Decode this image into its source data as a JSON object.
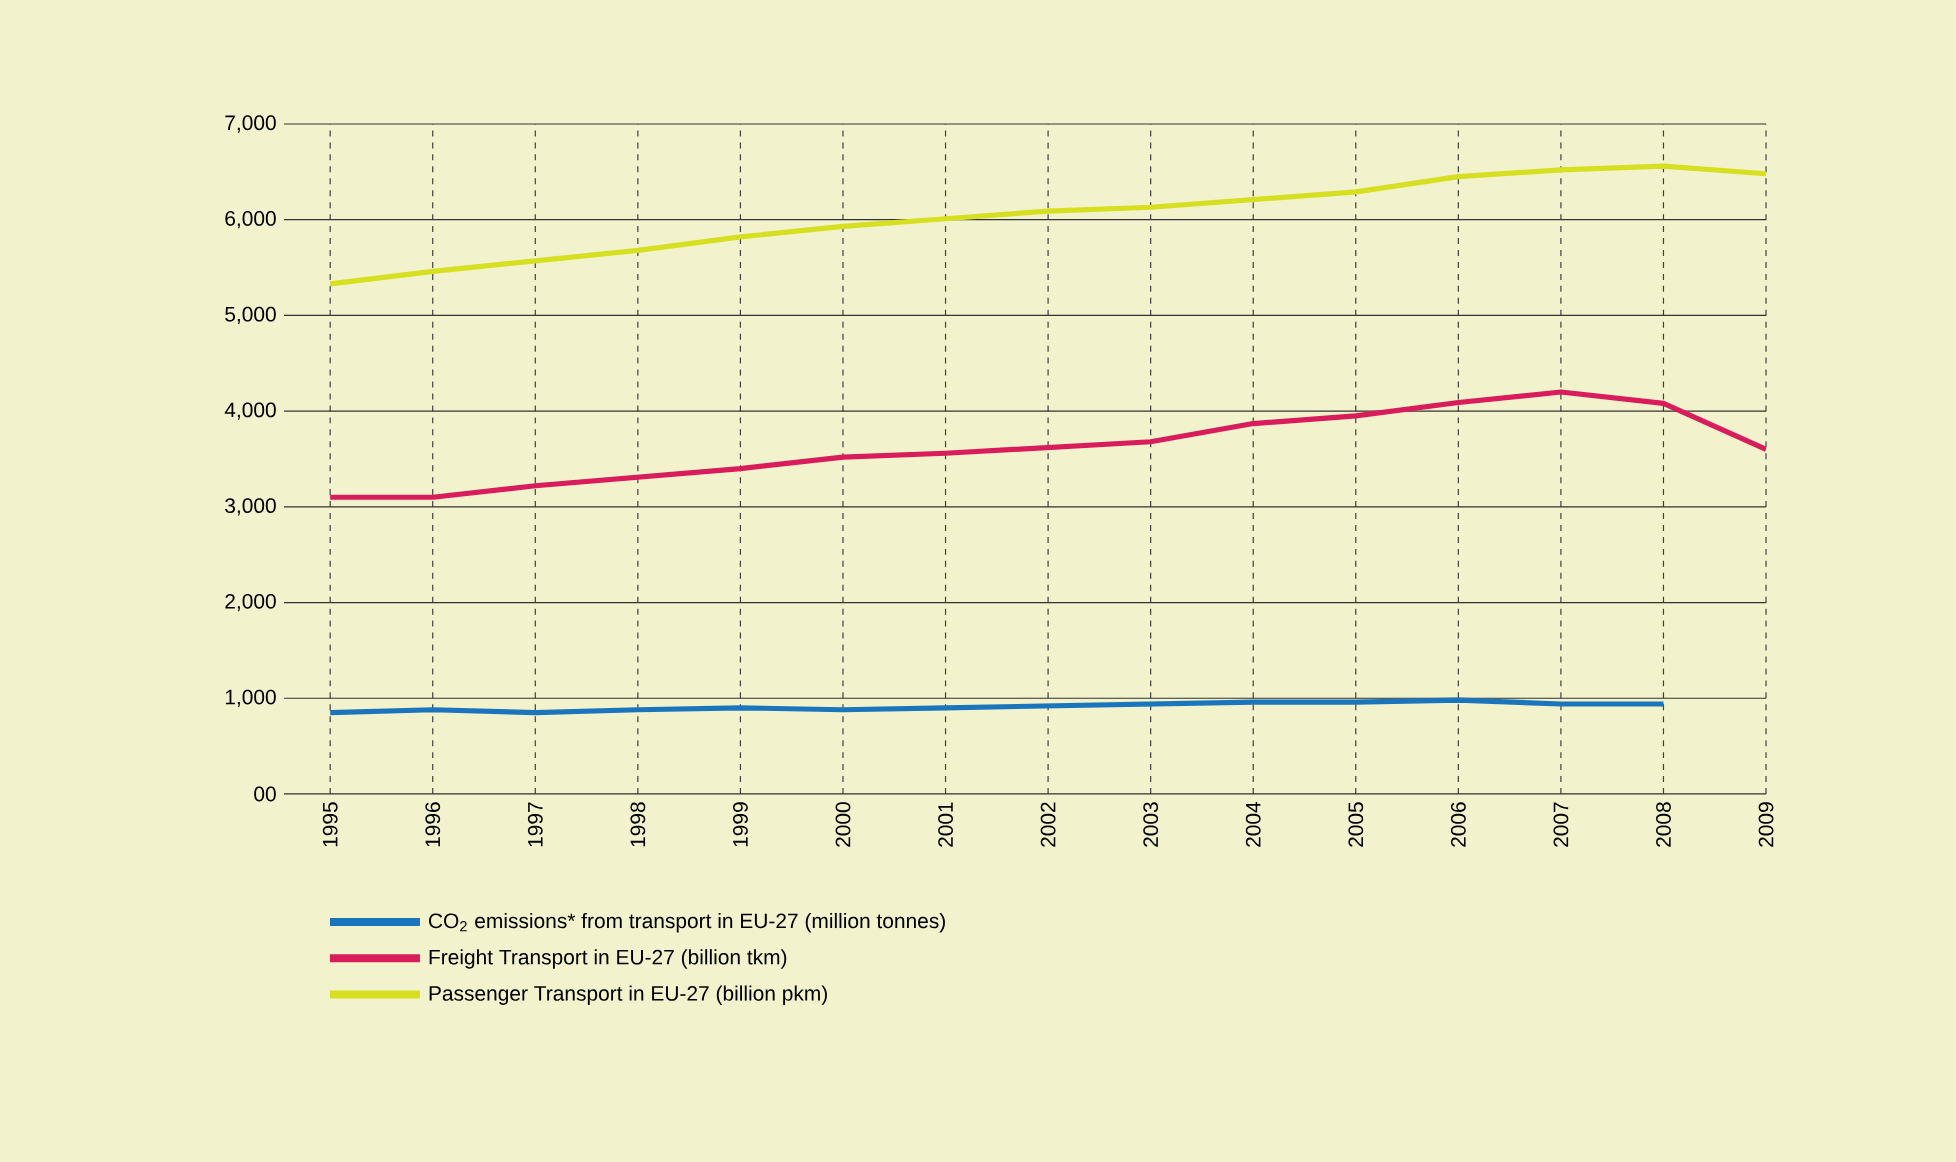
{
  "chart_data": {
    "type": "line",
    "categories": [
      "1995",
      "1996",
      "1997",
      "1998",
      "1999",
      "2000",
      "2001",
      "2002",
      "2003",
      "2004",
      "2005",
      "2006",
      "2007",
      "2008",
      "2009"
    ],
    "series": [
      {
        "name": "CO$_{2}$ emissions* from transport in EU-27 (million tonnes)",
        "color": "#1b75bc",
        "values": [
          850,
          880,
          850,
          880,
          900,
          880,
          900,
          920,
          940,
          960,
          960,
          980,
          940,
          940,
          null
        ]
      },
      {
        "name": "Freight Transport in EU-27 (billion tkm)",
        "color": "#d91c5c",
        "values": [
          3100,
          3100,
          3220,
          3310,
          3400,
          3520,
          3560,
          3620,
          3680,
          3870,
          3950,
          4090,
          4200,
          4080,
          3600
        ]
      },
      {
        "name": "Passenger Transport in EU-27 (billion pkm)",
        "color": "#d6e021",
        "values": [
          5330,
          5460,
          5570,
          5680,
          5820,
          5930,
          6010,
          6090,
          6130,
          6210,
          6290,
          6450,
          6520,
          6560,
          6480
        ]
      }
    ],
    "ylim": [
      0,
      7000
    ],
    "yticks": [
      {
        "value": 0,
        "label": "00"
      },
      {
        "value": 1000,
        "label": "1,000"
      },
      {
        "value": 2000,
        "label": "2,000"
      },
      {
        "value": 3000,
        "label": "3,000"
      },
      {
        "value": 4000,
        "label": "4,000"
      },
      {
        "value": 5000,
        "label": "5,000"
      },
      {
        "value": 6000,
        "label": "6,000"
      },
      {
        "value": 7000,
        "label": "7,000"
      }
    ],
    "grid": true,
    "legend": "bottom",
    "marker": "none",
    "line_style": "solid"
  }
}
